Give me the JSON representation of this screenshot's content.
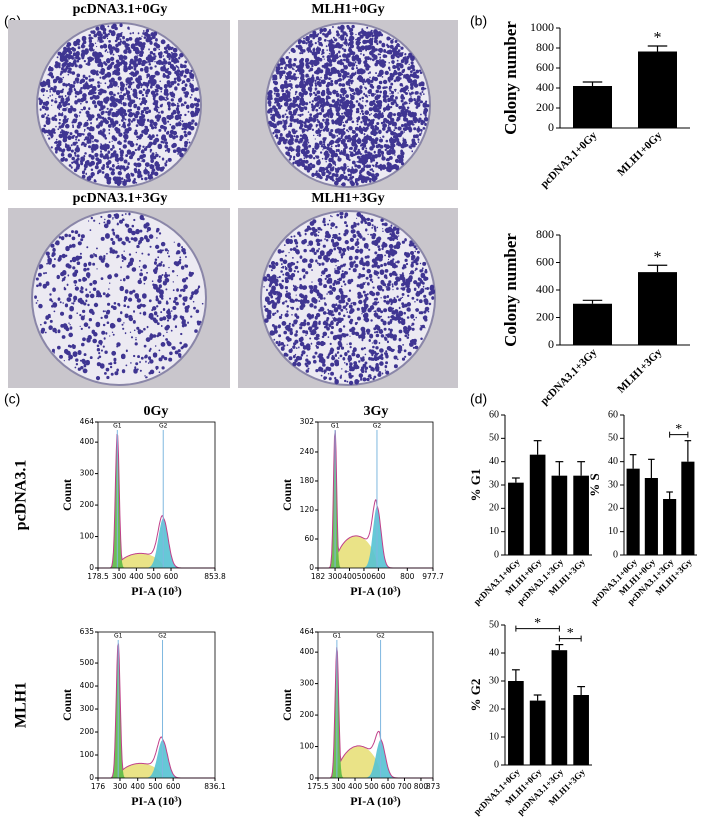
{
  "panel_labels": [
    "(a)",
    "(b)",
    "(c)",
    "(d)"
  ],
  "plates": {
    "titles": [
      "pcDNA3.1+0Gy",
      "MLH1+0Gy",
      "pcDNA3.1+3Gy",
      "MLH1+3Gy"
    ]
  },
  "flow_labels": {
    "columns": [
      "0Gy",
      "3Gy"
    ],
    "rows": [
      "pcDNA3.1",
      "MLH1"
    ]
  },
  "chart_data": [
    {
      "type": "bar",
      "ylabel": "Colony number",
      "categories": [
        "pcDNA3.1+0Gy",
        "MLH1+0Gy"
      ],
      "values": [
        420,
        765
      ],
      "errors": [
        40,
        55
      ],
      "color": "#000000",
      "ylim": [
        0,
        1000
      ],
      "yticks": [
        0,
        200,
        400,
        600,
        800,
        1000
      ],
      "annotations": [
        {
          "bar": 1,
          "label": "*"
        }
      ]
    },
    {
      "type": "bar",
      "ylabel": "Colony number",
      "categories": [
        "pcDNA3.1+3Gy",
        "MLH1+3Gy"
      ],
      "values": [
        300,
        530
      ],
      "errors": [
        25,
        50
      ],
      "color": "#000000",
      "ylim": [
        0,
        800
      ],
      "yticks": [
        0,
        200,
        400,
        600,
        800
      ],
      "annotations": [
        {
          "bar": 1,
          "label": "*"
        }
      ]
    },
    {
      "type": "bar",
      "ylabel": "% G1",
      "categories": [
        "pcDNA3.1+0Gy",
        "MLH1+0Gy",
        "pcDNA3.1+3Gy",
        "MLH1+3Gy"
      ],
      "values": [
        31,
        43,
        34,
        34
      ],
      "errors": [
        2,
        6,
        6,
        6
      ],
      "color": "#000000",
      "ylim": [
        0,
        60
      ],
      "yticks": [
        0,
        10,
        20,
        30,
        40,
        50,
        60
      ],
      "annotations": []
    },
    {
      "type": "bar",
      "ylabel": "% S",
      "categories": [
        "pcDNA3.1+0Gy",
        "MLH1+0Gy",
        "pcDNA3.1+3Gy",
        "MLH1+3Gy"
      ],
      "values": [
        37,
        33,
        24,
        40
      ],
      "errors": [
        6,
        8,
        3,
        9
      ],
      "color": "#000000",
      "ylim": [
        0,
        60
      ],
      "yticks": [
        0,
        10,
        20,
        30,
        40,
        50,
        60
      ],
      "annotations": [
        {
          "from": 2,
          "to": 3,
          "label": "*"
        }
      ]
    },
    {
      "type": "bar",
      "ylabel": "% G2",
      "categories": [
        "pcDNA3.1+0Gy",
        "MLH1+0Gy",
        "pcDNA3.1+3Gy",
        "MLH1+3Gy"
      ],
      "values": [
        30,
        23,
        41,
        25
      ],
      "errors": [
        4,
        2,
        2,
        3
      ],
      "color": "#000000",
      "ylim": [
        0,
        50
      ],
      "yticks": [
        0,
        10,
        20,
        30,
        40,
        50
      ],
      "annotations": [
        {
          "from": 0,
          "to": 2,
          "label": "*"
        },
        {
          "from": 2,
          "to": 3,
          "label": "*"
        }
      ]
    },
    {
      "type": "flow",
      "xlabel": "PI-A (10³)",
      "ylabel": "Count",
      "xlim": [
        178.5,
        853.8
      ],
      "xticks": [
        178.5,
        300,
        400,
        500,
        600,
        853.8
      ],
      "ylim": [
        0,
        464
      ],
      "yticks": [
        0,
        100,
        200,
        300,
        400,
        464
      ],
      "markers": [
        {
          "label": "G1",
          "x": 290
        },
        {
          "label": "G2",
          "x": 555
        }
      ]
    },
    {
      "type": "flow",
      "xlabel": "PI-A (10³)",
      "ylabel": "Count",
      "xlim": [
        182,
        977.7
      ],
      "xticks": [
        182,
        300,
        400,
        500,
        600,
        800,
        977.7
      ],
      "ylim": [
        0,
        302
      ],
      "yticks": [
        0,
        60,
        120,
        180,
        240,
        302
      ],
      "markers": [
        {
          "label": "G1",
          "x": 300
        },
        {
          "label": "G2",
          "x": 590
        }
      ]
    },
    {
      "type": "flow",
      "xlabel": "PI-A (10³)",
      "ylabel": "Count",
      "xlim": [
        176,
        836.1
      ],
      "xticks": [
        176,
        300,
        400,
        500,
        600,
        836.1
      ],
      "ylim": [
        0,
        635
      ],
      "yticks": [
        0,
        100,
        200,
        300,
        400,
        500,
        635
      ],
      "markers": [
        {
          "label": "G1",
          "x": 290
        },
        {
          "label": "G2",
          "x": 540
        }
      ]
    },
    {
      "type": "flow",
      "xlabel": "PI-A (10³)",
      "ylabel": "Count",
      "xlim": [
        175.5,
        873
      ],
      "xticks": [
        175.5,
        300,
        400,
        500,
        600,
        700,
        800,
        873
      ],
      "ylim": [
        0,
        464
      ],
      "yticks": [
        0,
        100,
        200,
        300,
        400,
        464
      ],
      "markers": [
        {
          "label": "G1",
          "x": 290
        },
        {
          "label": "G2",
          "x": 555
        }
      ]
    }
  ]
}
